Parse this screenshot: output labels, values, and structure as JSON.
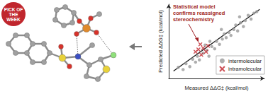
{
  "badge": "PICK OF THE WEEK",
  "chart_data": {
    "type": "scatter",
    "annotation": [
      "Statistical model",
      "confirms reassigned",
      "stereochemistry"
    ],
    "x_label": "Measured ΔΔG‡ (kcal/mol)",
    "y_label": "Predicted ΔΔG‡ (kcal/mol)",
    "xlim": [
      0,
      10
    ],
    "ylim": [
      0,
      10
    ],
    "xticks": [],
    "yticks": [],
    "tick_labels": false,
    "grid": false,
    "legend": "bottom-right",
    "trend_line": {
      "x": [
        0.5,
        9.5
      ],
      "y": [
        1.0,
        9.3
      ]
    },
    "series": [
      {
        "name": "intermolecular",
        "color": "#9a9a9a",
        "marker": "circle",
        "x": [
          1.0,
          1.5,
          1.8,
          2.2,
          2.5,
          2.8,
          3.0,
          3.2,
          3.6,
          4.0,
          4.2,
          4.5,
          4.8,
          5.0,
          5.3,
          5.6,
          5.8,
          6.0,
          6.3,
          6.5,
          6.8,
          7.0,
          7.2,
          7.5,
          7.8,
          8.0,
          8.3,
          8.6,
          8.9,
          9.2,
          5.5,
          4.3,
          7.4,
          3.8
        ],
        "values": [
          1.5,
          1.2,
          2.0,
          1.6,
          2.6,
          2.2,
          3.0,
          2.5,
          3.4,
          3.8,
          3.0,
          4.3,
          4.0,
          5.0,
          4.6,
          5.3,
          6.0,
          5.5,
          6.2,
          5.8,
          6.6,
          7.2,
          6.4,
          7.5,
          7.0,
          7.8,
          8.5,
          8.0,
          8.8,
          9.0,
          6.6,
          5.0,
          8.3,
          4.5
        ]
      },
      {
        "name": "intramolecular",
        "color": "#c0262d",
        "marker": "x",
        "x": [
          2.8,
          3.1,
          3.4,
          3.6,
          3.9,
          4.1,
          3.3
        ],
        "values": [
          3.6,
          3.9,
          3.2,
          4.1,
          3.6,
          4.4,
          4.6
        ]
      }
    ]
  }
}
